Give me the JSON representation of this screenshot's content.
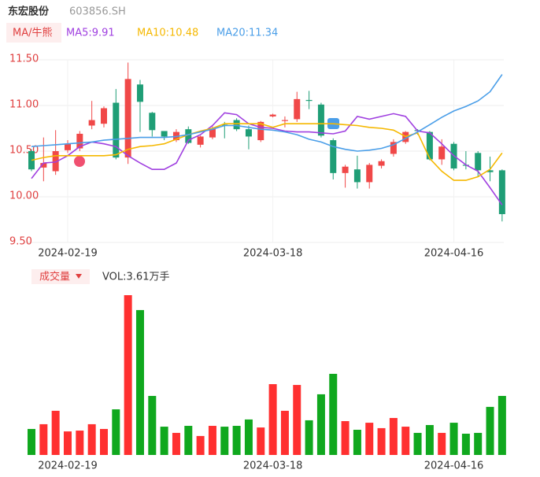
{
  "header": {
    "name": "东宏股份",
    "code": "603856.SH"
  },
  "chart_data": [
    {
      "type": "candlestick",
      "legend_title": "MA/牛熊",
      "categories": [
        null,
        null,
        null,
        "2024-02-19",
        null,
        null,
        null,
        null,
        null,
        null,
        null,
        null,
        null,
        null,
        null,
        null,
        null,
        null,
        null,
        null,
        "2024-03-18",
        null,
        null,
        null,
        null,
        null,
        null,
        null,
        null,
        null,
        null,
        null,
        null,
        null,
        null,
        "2024-04-16",
        null,
        null,
        null,
        null
      ],
      "open": [
        10.5,
        10.32,
        10.28,
        10.51,
        10.53,
        10.78,
        10.8,
        11.03,
        10.43,
        11.23,
        10.92,
        10.72,
        10.62,
        10.74,
        10.57,
        10.65,
        10.79,
        10.84,
        10.74,
        10.62,
        10.88,
        10.83,
        10.85,
        11.06,
        11.01,
        10.62,
        10.26,
        10.3,
        10.16,
        10.34,
        10.47,
        10.6,
        10.73,
        10.71,
        10.41,
        10.58,
        10.35,
        10.48,
        10.29,
        10.29
      ],
      "close": [
        10.3,
        10.37,
        10.5,
        10.58,
        10.69,
        10.84,
        10.97,
        10.43,
        11.29,
        11.04,
        10.73,
        10.66,
        10.71,
        10.59,
        10.66,
        10.75,
        10.78,
        10.74,
        10.66,
        10.82,
        10.9,
        10.84,
        11.07,
        11.05,
        10.67,
        10.26,
        10.33,
        10.16,
        10.35,
        10.39,
        10.6,
        10.71,
        10.72,
        10.41,
        10.55,
        10.31,
        10.34,
        10.29,
        10.27,
        9.81
      ],
      "high": [
        10.52,
        10.65,
        10.73,
        10.62,
        10.72,
        11.05,
        10.99,
        11.18,
        11.47,
        11.28,
        10.93,
        10.72,
        10.74,
        10.77,
        10.67,
        10.77,
        10.82,
        10.86,
        10.78,
        10.83,
        10.91,
        10.88,
        11.15,
        11.16,
        11.03,
        10.64,
        10.35,
        10.45,
        10.37,
        10.41,
        10.63,
        10.72,
        10.74,
        10.72,
        10.63,
        10.6,
        10.5,
        10.5,
        10.44,
        10.3
      ],
      "low": [
        10.28,
        10.17,
        10.24,
        10.48,
        10.5,
        10.74,
        10.76,
        10.41,
        10.36,
        10.71,
        10.66,
        10.62,
        10.6,
        10.58,
        10.54,
        10.63,
        10.64,
        10.72,
        10.52,
        10.6,
        10.87,
        10.76,
        10.82,
        10.96,
        10.65,
        10.19,
        10.1,
        10.09,
        10.09,
        10.31,
        10.44,
        10.58,
        10.68,
        10.4,
        10.35,
        10.29,
        10.3,
        10.22,
        10.17,
        9.73
      ],
      "up_color": "#f04848",
      "down_color": "#1f9e76",
      "series": [
        {
          "name": "MA5:9.91",
          "color": "#a040e0",
          "values": [
            10.2,
            10.37,
            10.38,
            10.45,
            10.55,
            10.6,
            10.58,
            10.55,
            10.45,
            10.37,
            10.3,
            10.3,
            10.37,
            10.62,
            10.68,
            10.78,
            10.92,
            10.9,
            10.8,
            10.76,
            10.75,
            10.72,
            10.71,
            10.71,
            10.7,
            10.69,
            10.72,
            10.88,
            10.85,
            10.88,
            10.91,
            10.88,
            10.72,
            10.7,
            10.58,
            10.45,
            10.35,
            10.28,
            10.1,
            9.91
          ]
        },
        {
          "name": "MA10:10.48",
          "color": "#f5b800",
          "values": [
            10.4,
            10.43,
            10.45,
            10.45,
            10.45,
            10.45,
            10.45,
            10.46,
            10.52,
            10.55,
            10.56,
            10.58,
            10.63,
            10.68,
            10.72,
            10.75,
            10.8,
            10.8,
            10.8,
            10.8,
            10.76,
            10.8,
            10.8,
            10.8,
            10.8,
            10.8,
            10.79,
            10.78,
            10.76,
            10.75,
            10.73,
            10.66,
            10.7,
            10.42,
            10.28,
            10.18,
            10.18,
            10.22,
            10.3,
            10.48
          ]
        },
        {
          "name": "MA20:11.34",
          "color": "#4a9ee8",
          "values": [
            10.55,
            10.56,
            10.57,
            10.58,
            10.59,
            10.6,
            10.62,
            10.63,
            10.64,
            10.65,
            10.65,
            10.65,
            10.66,
            10.68,
            10.71,
            10.74,
            10.78,
            10.78,
            10.76,
            10.74,
            10.73,
            10.71,
            10.68,
            10.63,
            10.6,
            10.55,
            10.52,
            10.5,
            10.51,
            10.53,
            10.57,
            10.64,
            10.71,
            10.79,
            10.87,
            10.94,
            10.99,
            11.05,
            11.15,
            11.34
          ]
        }
      ],
      "ylim": [
        9.5,
        11.5
      ],
      "yticks": [
        {
          "value": 11.5,
          "label": "11.50"
        },
        {
          "value": 11,
          "label": "11.00"
        },
        {
          "value": 10.5,
          "label": "10.50"
        },
        {
          "value": 10,
          "label": "10.00"
        },
        {
          "value": 9.5,
          "label": "9.50"
        }
      ],
      "grid": true
    },
    {
      "type": "bar",
      "legend_title": "成交量",
      "legend_value": "VOL:3.61万手",
      "categories": [
        null,
        null,
        null,
        "2024-02-19",
        null,
        null,
        null,
        null,
        null,
        null,
        null,
        null,
        null,
        null,
        null,
        null,
        null,
        null,
        null,
        null,
        "2024-03-18",
        null,
        null,
        null,
        null,
        null,
        null,
        null,
        null,
        null,
        null,
        null,
        null,
        null,
        null,
        "2024-04-16",
        null,
        null,
        null,
        null
      ],
      "values": [
        1.59,
        1.88,
        2.7,
        1.44,
        1.49,
        1.88,
        1.59,
        2.79,
        9.77,
        8.86,
        3.61,
        1.73,
        1.35,
        1.78,
        1.16,
        1.78,
        1.73,
        1.78,
        2.17,
        1.68,
        4.33,
        2.7,
        4.28,
        2.12,
        3.71,
        4.96,
        2.07,
        1.54,
        1.97,
        1.64,
        2.26,
        1.73,
        1.35,
        1.83,
        1.35,
        1.97,
        1.3,
        1.35,
        2.94,
        3.61
      ],
      "up_color": "#ff3030",
      "down_color": "#10a81e",
      "ylim": [
        0,
        9.77
      ]
    }
  ]
}
